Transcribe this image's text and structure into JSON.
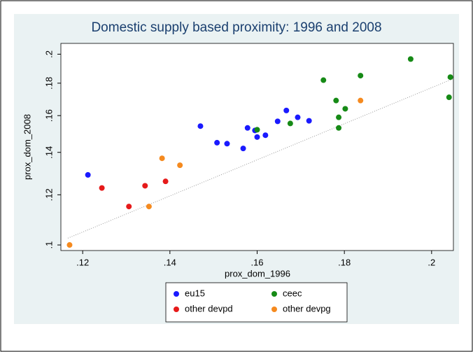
{
  "chart_data": {
    "type": "scatter",
    "title": "Domestic supply based proximity: 1996 and 2008",
    "x_label": "prox_dom_1996",
    "y_label": "prox_dom_2008",
    "xlim": [
      0.115,
      0.205
    ],
    "ylim": [
      0.098,
      0.208
    ],
    "y_log": true,
    "xticks": [
      {
        "value": 0.12,
        "label": ".12"
      },
      {
        "value": 0.14,
        "label": ".14"
      },
      {
        "value": 0.16,
        "label": ".16"
      },
      {
        "value": 0.18,
        "label": ".18"
      },
      {
        "value": 0.2,
        "label": ".2"
      }
    ],
    "yticks": [
      {
        "value": 0.1,
        "label": ".1"
      },
      {
        "value": 0.12,
        "label": ".12"
      },
      {
        "value": 0.14,
        "label": ".14"
      },
      {
        "value": 0.16,
        "label": ".16"
      },
      {
        "value": 0.18,
        "label": ".18"
      },
      {
        "value": 0.2,
        "label": ".2"
      }
    ],
    "series": [
      {
        "name": "eu15",
        "color": "#1a1aff",
        "x": [
          0.1212,
          0.147,
          0.1508,
          0.1531,
          0.1568,
          0.1578,
          0.1595,
          0.16,
          0.1619,
          0.1647,
          0.1667,
          0.1693,
          0.1719
        ],
        "values": [
          0.129,
          0.154,
          0.145,
          0.1445,
          0.142,
          0.153,
          0.1516,
          0.148,
          0.149,
          0.1567,
          0.163,
          0.159,
          0.157
        ]
      },
      {
        "name": "ceec",
        "color": "#168a16",
        "x": [
          0.16,
          0.1676,
          0.1752,
          0.1781,
          0.1787,
          0.1787,
          0.1802,
          0.1837,
          0.1952,
          0.2043,
          0.204
        ],
        "values": [
          0.152,
          0.1555,
          0.182,
          0.169,
          0.159,
          0.153,
          0.164,
          0.185,
          0.1965,
          0.184,
          0.171
        ]
      },
      {
        "name": "other devpd",
        "color": "#e61a1a",
        "x": [
          0.1244,
          0.1306,
          0.1343,
          0.139
        ],
        "values": [
          0.123,
          0.115,
          0.124,
          0.126
        ]
      },
      {
        "name": "other devpg",
        "color": "#f58a1f",
        "x": [
          0.117,
          0.1352,
          0.1382,
          0.1423,
          0.1837
        ],
        "values": [
          0.1,
          0.115,
          0.137,
          0.1336,
          0.169
        ]
      }
    ],
    "fit_line": {
      "x": [
        0.1166,
        0.205
      ],
      "values": [
        0.1025,
        0.183
      ],
      "color": "#999999"
    }
  }
}
